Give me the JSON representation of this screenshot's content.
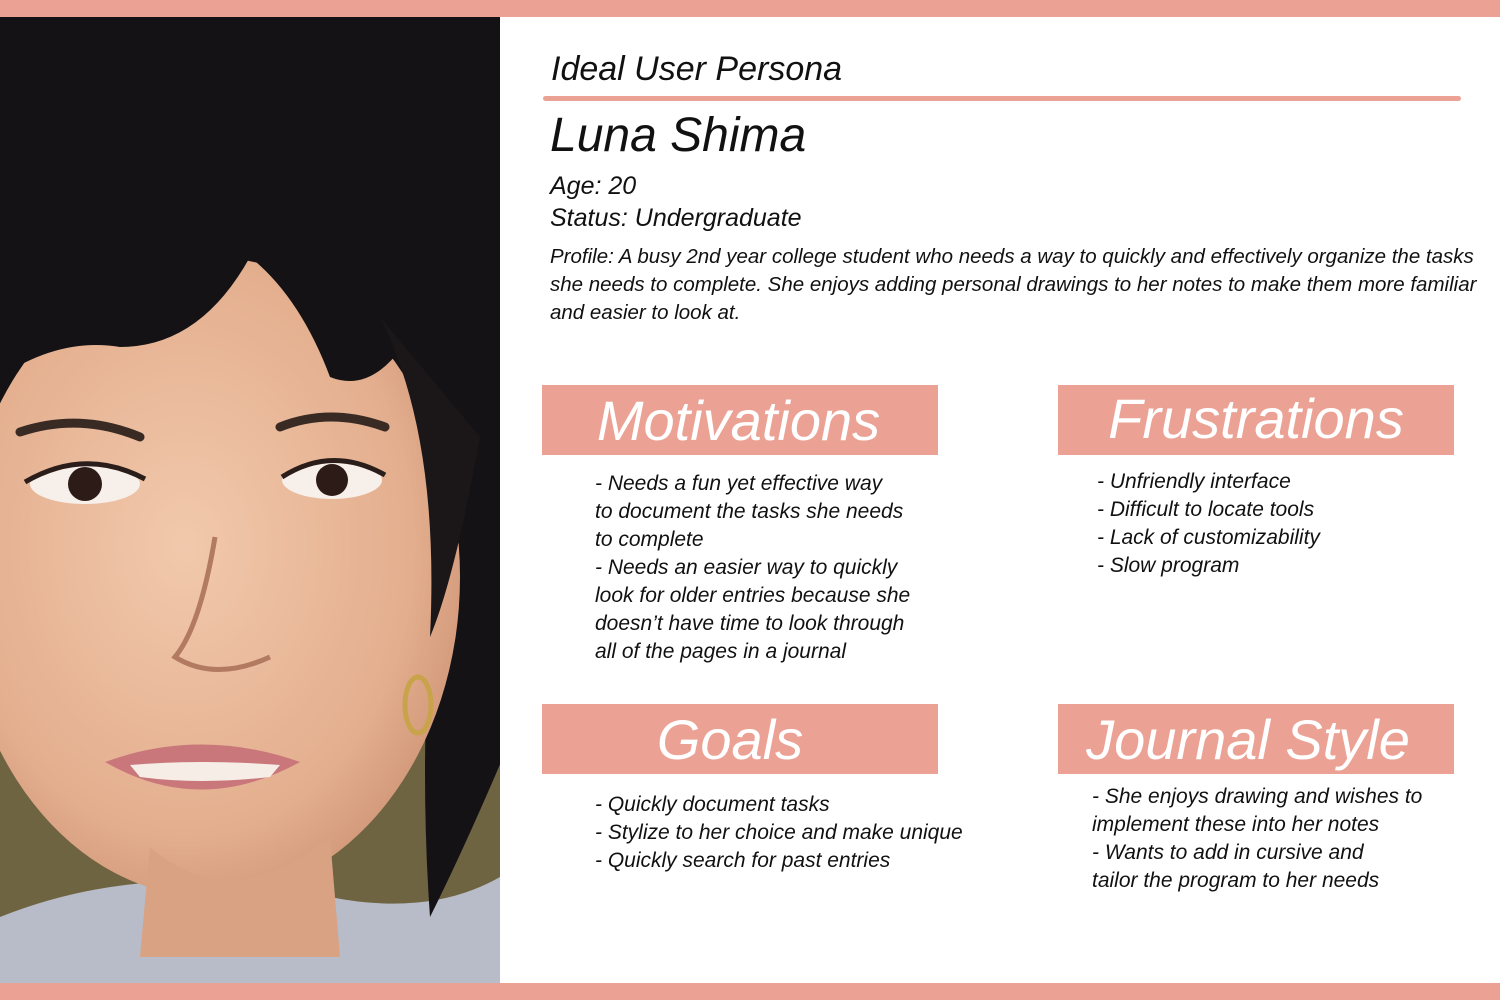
{
  "header": {
    "title": "Ideal User Persona"
  },
  "persona": {
    "name": "Luna Shima",
    "age": "Age: 20",
    "status": "Status: Undergraduate",
    "profile": "Profile: A busy 2nd year college student who needs a way to quickly and effectively organize the tasks she needs to complete. She enjoys adding personal drawings to her notes to make them more familiar and easier to look at."
  },
  "sections": {
    "motivations": {
      "title": "Motivations",
      "body": "- Needs a fun yet effective way\nto document the tasks she needs\nto complete\n- Needs an easier way to quickly\nlook for older entries because she\ndoesn’t have time to look through\nall of the pages in a journal"
    },
    "frustrations": {
      "title": "Frustrations",
      "body": "- Unfriendly interface\n- Difficult to locate tools\n- Lack of customizability\n- Slow program"
    },
    "goals": {
      "title": "Goals",
      "body": "- Quickly document tasks\n- Stylize to her choice and make unique\n- Quickly search for past entries"
    },
    "journal_style": {
      "title": "Journal Style",
      "body": "- She enjoys drawing and wishes to\nimplement these into her notes\n- Wants to add in cursive and\ntailor the program to her needs"
    }
  },
  "colors": {
    "accent": "#eba294",
    "text": "#111111",
    "background": "#ffffff"
  }
}
